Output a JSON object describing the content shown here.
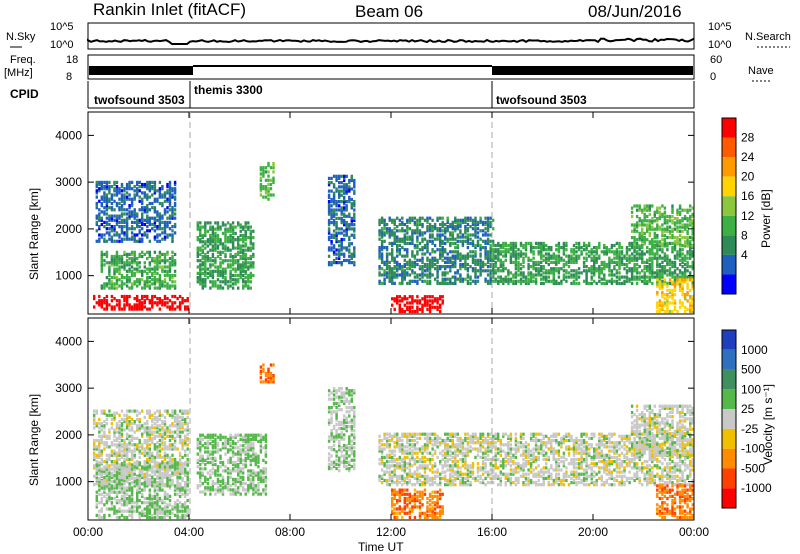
{
  "header": {
    "station": "Rankin Inlet (fitACF)",
    "beam": "Beam 06",
    "date": "08/Jun/2016"
  },
  "strips": {
    "nsky_label": "N.Sky",
    "nsearch_label": "N.Search",
    "nsky_ticks": [
      "10^5",
      "10^0"
    ],
    "nsearch_ticks": [
      "10^5",
      "10^0"
    ],
    "freq_label_line1": "Freq.",
    "freq_label_line2": "[MHz]",
    "freq_ticks": [
      "18",
      "8"
    ],
    "nave_label": "Nave",
    "nave_ticks": [
      "60",
      "0"
    ],
    "cpid_label": "CPID"
  },
  "cpid_segments": [
    {
      "name": "twofsound 3503",
      "start_hr": 0,
      "end_hr": 3.8
    },
    {
      "name": "themis 3300",
      "start_hr": 3.8,
      "end_hr": 16.0
    },
    {
      "name": "twofsound 3503",
      "start_hr": 16.0,
      "end_hr": 24
    }
  ],
  "panels": {
    "ylabel": "Slant Range [km]",
    "y_ticks": [
      "4000",
      "3000",
      "2000",
      "1000"
    ],
    "x_ticks": [
      "00:00",
      "04:00",
      "08:00",
      "12:00",
      "16:00",
      "20:00",
      "00:00"
    ],
    "xlabel": "Time UT"
  },
  "power_scale": {
    "label": "Power [dB]",
    "ticks": [
      "28",
      "24",
      "20",
      "16",
      "12",
      "8",
      "4"
    ],
    "colors": [
      "#ff0000",
      "#ff5a00",
      "#ff9a00",
      "#ffd400",
      "#8cc63f",
      "#3cb043",
      "#2e8b57",
      "#1f5fbf",
      "#0000ff"
    ]
  },
  "velocity_scale": {
    "label": "Velocity [m s⁻¹]",
    "ticks": [
      "1000",
      "500",
      "100",
      "25",
      "-25",
      "-100",
      "-500",
      "-1000"
    ],
    "colors": [
      "#1f3fbf",
      "#2f6fbf",
      "#3f8f5f",
      "#55b84a",
      "#c8c8c8",
      "#f0c000",
      "#ff8c00",
      "#ff4000",
      "#ff0000"
    ]
  },
  "chart_data": {
    "type": "heatmap",
    "title": "Rankin Inlet (fitACF)",
    "xlabel": "Time UT",
    "ylabel": "Slant Range [km]",
    "x_range_hours": [
      0,
      24
    ],
    "y_range_km": [
      180,
      4500
    ],
    "panels": [
      {
        "quantity": "Power [dB]",
        "color_range": [
          3,
          30
        ],
        "regions": [
          {
            "t": [
              0.2,
              4.0
            ],
            "r": [
              250,
              550
            ],
            "level": 30
          },
          {
            "t": [
              0.5,
              3.5
            ],
            "r": [
              700,
              1500
            ],
            "level": 13
          },
          {
            "t": [
              0.3,
              3.5
            ],
            "r": [
              1700,
              3000
            ],
            "level": 8
          },
          {
            "t": [
              4.3,
              6.5
            ],
            "r": [
              700,
              2100
            ],
            "level": 12
          },
          {
            "t": [
              6.8,
              7.3
            ],
            "r": [
              2600,
              3400
            ],
            "level": 14
          },
          {
            "t": [
              9.5,
              10.5
            ],
            "r": [
              1200,
              3100
            ],
            "level": 8
          },
          {
            "t": [
              12.0,
              14.0
            ],
            "r": [
              200,
              550
            ],
            "level": 30
          },
          {
            "t": [
              11.5,
              16.0
            ],
            "r": [
              800,
              2200
            ],
            "level": 10
          },
          {
            "t": [
              16.0,
              24.0
            ],
            "r": [
              800,
              1700
            ],
            "level": 12
          },
          {
            "t": [
              21.5,
              24.0
            ],
            "r": [
              1600,
              2500
            ],
            "level": 14
          },
          {
            "t": [
              22.5,
              24.0
            ],
            "r": [
              200,
              900
            ],
            "level": 20
          }
        ]
      },
      {
        "quantity": "Velocity [m s-1]",
        "color_range": [
          -1000,
          1000
        ],
        "regions": [
          {
            "t": [
              0.2,
              4.0
            ],
            "r": [
              900,
              2500
            ],
            "level": 0
          },
          {
            "t": [
              0.3,
              4.0
            ],
            "r": [
              200,
              1400
            ],
            "level": 100
          },
          {
            "t": [
              4.3,
              7.0
            ],
            "r": [
              700,
              2000
            ],
            "level": 150
          },
          {
            "t": [
              6.8,
              7.3
            ],
            "r": [
              3100,
              3500
            ],
            "level": -500
          },
          {
            "t": [
              9.5,
              10.5
            ],
            "r": [
              1200,
              3000
            ],
            "level": 100
          },
          {
            "t": [
              12.0,
              14.0
            ],
            "r": [
              200,
              800
            ],
            "level": -500
          },
          {
            "t": [
              11.5,
              24.0
            ],
            "r": [
              900,
              2000
            ],
            "level": 0
          },
          {
            "t": [
              22.5,
              24.0
            ],
            "r": [
              200,
              900
            ],
            "level": -500
          },
          {
            "t": [
              21.5,
              24.0
            ],
            "r": [
              1500,
              2600
            ],
            "level": 0
          }
        ]
      }
    ]
  }
}
